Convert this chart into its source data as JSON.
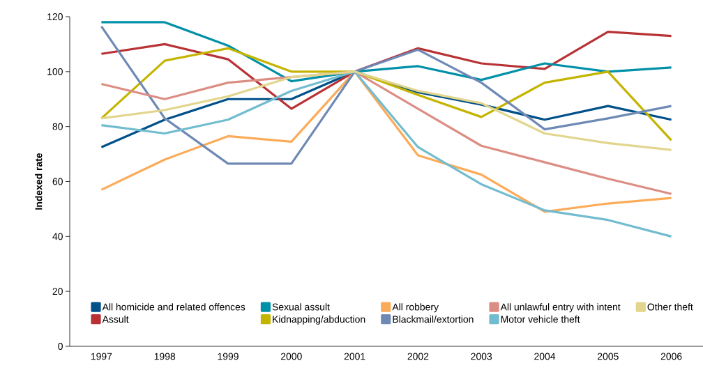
{
  "chart_data": {
    "type": "line",
    "ylabel": "Indexed rate",
    "categories": [
      "1997",
      "1998",
      "1999",
      "2000",
      "2001",
      "2002",
      "2003",
      "2004",
      "2005",
      "2006"
    ],
    "ylim": [
      0,
      120
    ],
    "yticks": [
      0,
      20,
      40,
      60,
      80,
      100,
      120
    ],
    "grid": false,
    "legend": "bottom left",
    "marker": "none",
    "line_style": "solid",
    "series": [
      {
        "name": "All homicide and related offences",
        "color": "#00508a",
        "values": [
          72.5,
          82.5,
          90,
          90,
          100,
          92.5,
          88,
          82.5,
          87.5,
          82.5
        ]
      },
      {
        "name": "Assult",
        "color": "#b83235",
        "values": [
          106.5,
          110,
          104.5,
          86.5,
          100,
          108.5,
          103,
          101,
          114.5,
          113
        ]
      },
      {
        "name": "Sexual assult",
        "color": "#0090a8",
        "values": [
          118,
          118,
          109.5,
          96.5,
          100,
          102,
          97,
          103,
          100,
          101.5
        ]
      },
      {
        "name": "Kidnapping/abduction",
        "color": "#c4b400",
        "values": [
          83,
          104,
          108.5,
          100,
          100,
          91.5,
          83.5,
          96,
          100,
          75
        ]
      },
      {
        "name": "All robbery",
        "color": "#fbab5a",
        "values": [
          57,
          68,
          76.5,
          74.5,
          100,
          69.5,
          62.5,
          49,
          52,
          54
        ]
      },
      {
        "name": "Blackmail/extortion",
        "color": "#6f89b5",
        "values": [
          116.5,
          83,
          66.5,
          66.5,
          100,
          108,
          96,
          79,
          83,
          87.5
        ]
      },
      {
        "name": "All unlawful entry with intent",
        "color": "#dc8e84",
        "values": [
          95.5,
          90,
          96,
          98,
          100,
          86.5,
          73,
          67,
          61,
          55.5
        ]
      },
      {
        "name": "Motor vehicle theft",
        "color": "#72bccf",
        "values": [
          80.5,
          77.5,
          82.5,
          93,
          100,
          72.5,
          59,
          49.5,
          46,
          40
        ]
      },
      {
        "name": "Other theft",
        "color": "#e2d68e",
        "values": [
          83,
          86,
          91,
          98,
          100,
          93,
          88.5,
          77.5,
          74,
          71.5
        ]
      }
    ]
  }
}
